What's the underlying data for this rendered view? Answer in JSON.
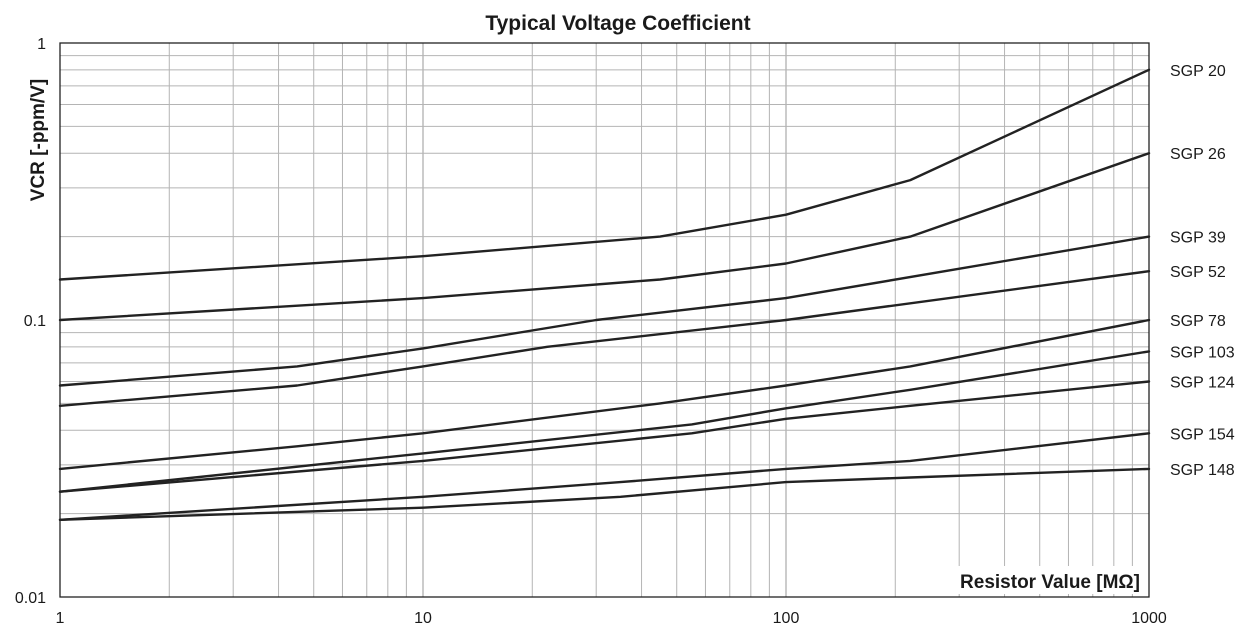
{
  "chart_data": {
    "type": "line",
    "title": "Typical Voltage Coefficient",
    "xlabel": "Resistor Value [MΩ]",
    "ylabel": "VCR [-ppm/V]",
    "x_scale": "log",
    "y_scale": "log",
    "xlim": [
      1,
      1000
    ],
    "ylim": [
      0.01,
      1
    ],
    "x_ticks": [
      "1",
      "10",
      "100",
      "1000"
    ],
    "y_ticks": [
      "1",
      "0.1",
      "0.01"
    ],
    "grid": true,
    "legend": "right (series names printed at line ends)",
    "line_color": "#222222",
    "series": [
      {
        "name": "SGP 20",
        "x": [
          1,
          10,
          45,
          100,
          220,
          1000
        ],
        "y": [
          0.14,
          0.17,
          0.2,
          0.24,
          0.32,
          0.8
        ]
      },
      {
        "name": "SGP 26",
        "x": [
          1,
          10,
          45,
          100,
          220,
          1000
        ],
        "y": [
          0.1,
          0.12,
          0.14,
          0.16,
          0.2,
          0.4
        ]
      },
      {
        "name": "SGP 39",
        "x": [
          1,
          4.5,
          10,
          30,
          100,
          1000
        ],
        "y": [
          0.058,
          0.068,
          0.079,
          0.1,
          0.12,
          0.2
        ]
      },
      {
        "name": "SGP 52",
        "x": [
          1,
          4.5,
          10,
          22,
          100,
          1000
        ],
        "y": [
          0.049,
          0.058,
          0.068,
          0.08,
          0.1,
          0.15
        ]
      },
      {
        "name": "SGP 78",
        "x": [
          1,
          4.5,
          10,
          45,
          100,
          220,
          1000
        ],
        "y": [
          0.029,
          0.035,
          0.039,
          0.05,
          0.058,
          0.068,
          0.1
        ]
      },
      {
        "name": "SGP 103",
        "x": [
          1,
          10,
          55,
          100,
          220,
          1000
        ],
        "y": [
          0.024,
          0.033,
          0.042,
          0.048,
          0.056,
          0.077
        ]
      },
      {
        "name": "SGP 124",
        "x": [
          1,
          10,
          55,
          100,
          220,
          1000
        ],
        "y": [
          0.024,
          0.031,
          0.039,
          0.044,
          0.049,
          0.06
        ]
      },
      {
        "name": "SGP 154",
        "x": [
          1,
          10,
          35,
          100,
          220,
          1000
        ],
        "y": [
          0.019,
          0.023,
          0.026,
          0.029,
          0.031,
          0.039
        ]
      },
      {
        "name": "SGP 148",
        "x": [
          1,
          10,
          35,
          100,
          220,
          1000
        ],
        "y": [
          0.019,
          0.021,
          0.023,
          0.026,
          0.027,
          0.029
        ]
      }
    ]
  }
}
